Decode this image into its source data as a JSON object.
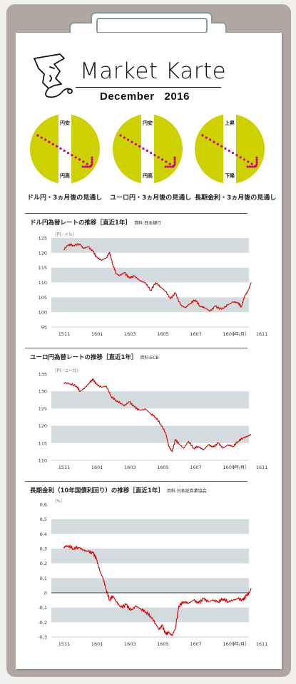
{
  "header": {
    "title": "Market Karte",
    "subtitle": "December   2016",
    "logo_icon": "face-profile-icon"
  },
  "colors": {
    "board": "#b0a6a2",
    "paper": "#ffffff",
    "forecast_circle": "#cdd100",
    "forecast_arrow": "#c8007a",
    "band": "#d4dbde",
    "line": "#d40000"
  },
  "forecasts": [
    {
      "top_label": "円安",
      "bottom_label": "円高",
      "caption": "ドル円・3ヵ月後の見通し",
      "direction": "down"
    },
    {
      "top_label": "円安",
      "bottom_label": "円高",
      "caption": "ユーロ円・3ヵ月後の見通し",
      "direction": "down"
    },
    {
      "top_label": "上昇",
      "bottom_label": "下降",
      "caption": "長期金利・3ヵ月後の見通し",
      "direction": "down"
    }
  ],
  "charts": [
    {
      "title": "ドル円為替レートの推移［直近1年］",
      "source": "資料:日本銀行"
    },
    {
      "title": "ユーロ円為替レートの推移［直近1年］",
      "source": "資料:ECB"
    },
    {
      "title": "長期金利（10年国債利回り）の推移［直近1年］",
      "source": "資料:日本証券業協会"
    }
  ],
  "chart_data": [
    {
      "type": "line",
      "unit": "［円／ドル］",
      "x_unit": "［年/月］",
      "x_ticks": [
        "1511",
        "1601",
        "1603",
        "1605",
        "1607",
        "1609",
        "1611"
      ],
      "ylim": [
        95,
        125
      ],
      "y_ticks": [
        "95",
        "100",
        "105",
        "110",
        "115",
        "120",
        "125"
      ],
      "y_tick_values": [
        95,
        100,
        105,
        110,
        115,
        120,
        125
      ],
      "series": [
        {
          "values": [
            [
              0,
              121.0
            ],
            [
              0.3,
              122.8
            ],
            [
              0.6,
              122.5
            ],
            [
              1.0,
              123.0
            ],
            [
              1.2,
              121.5
            ],
            [
              1.5,
              122.0
            ],
            [
              1.8,
              120.5
            ],
            [
              2.0,
              118.5
            ],
            [
              2.3,
              117.5
            ],
            [
              2.6,
              118.3
            ],
            [
              2.8,
              120.2
            ],
            [
              3.0,
              116.0
            ],
            [
              3.2,
              113.0
            ],
            [
              3.4,
              112.3
            ],
            [
              3.7,
              113.3
            ],
            [
              4.0,
              111.5
            ],
            [
              4.3,
              112.2
            ],
            [
              4.6,
              110.8
            ],
            [
              5.0,
              109.8
            ],
            [
              5.3,
              107.3
            ],
            [
              5.6,
              110.0
            ],
            [
              5.9,
              108.5
            ],
            [
              6.2,
              107.0
            ],
            [
              6.5,
              104.5
            ],
            [
              6.8,
              106.5
            ],
            [
              7.1,
              102.5
            ],
            [
              7.4,
              101.5
            ],
            [
              7.7,
              103.0
            ],
            [
              8.0,
              104.2
            ],
            [
              8.3,
              102.0
            ],
            [
              8.6,
              101.5
            ],
            [
              8.9,
              100.3
            ],
            [
              9.2,
              102.0
            ],
            [
              9.6,
              101.0
            ],
            [
              10.0,
              102.5
            ],
            [
              10.3,
              103.5
            ],
            [
              10.6,
              103.2
            ],
            [
              10.8,
              101.8
            ],
            [
              11.0,
              105.5
            ],
            [
              11.2,
              107.0
            ],
            [
              11.4,
              110.0
            ]
          ]
        }
      ]
    },
    {
      "type": "line",
      "unit": "［円／ユーロ］",
      "x_unit": "［年/月］",
      "x_ticks": [
        "1511",
        "1601",
        "1603",
        "1605",
        "1607",
        "1609",
        "1611"
      ],
      "ylim": [
        110,
        135
      ],
      "y_ticks": [
        "110",
        "115",
        "120",
        "125",
        "130",
        "135"
      ],
      "y_tick_values": [
        110,
        115,
        120,
        125,
        130,
        135
      ],
      "series": [
        {
          "values": [
            [
              0,
              132.5
            ],
            [
              0.4,
              132.2
            ],
            [
              0.8,
              131.5
            ],
            [
              1.0,
              130.0
            ],
            [
              1.3,
              131.0
            ],
            [
              1.6,
              132.6
            ],
            [
              1.8,
              133.5
            ],
            [
              2.0,
              132.0
            ],
            [
              2.3,
              131.2
            ],
            [
              2.6,
              131.5
            ],
            [
              2.9,
              128.5
            ],
            [
              3.2,
              127.3
            ],
            [
              3.5,
              126.5
            ],
            [
              3.7,
              125.8
            ],
            [
              4.0,
              127.0
            ],
            [
              4.3,
              125.5
            ],
            [
              4.6,
              124.5
            ],
            [
              5.0,
              124.8
            ],
            [
              5.3,
              123.5
            ],
            [
              5.6,
              122.5
            ],
            [
              5.9,
              120.5
            ],
            [
              6.2,
              118.0
            ],
            [
              6.4,
              114.0
            ],
            [
              6.6,
              112.5
            ],
            [
              6.8,
              116.0
            ],
            [
              7.0,
              114.8
            ],
            [
              7.3,
              113.5
            ],
            [
              7.6,
              115.5
            ],
            [
              7.9,
              113.5
            ],
            [
              8.2,
              114.0
            ],
            [
              8.5,
              113.0
            ],
            [
              8.8,
              114.5
            ],
            [
              9.1,
              113.8
            ],
            [
              9.4,
              115.0
            ],
            [
              9.7,
              113.5
            ],
            [
              10.0,
              114.5
            ],
            [
              10.3,
              114.0
            ],
            [
              10.6,
              115.5
            ],
            [
              10.9,
              116.5
            ],
            [
              11.2,
              117.0
            ],
            [
              11.4,
              117.5
            ]
          ]
        }
      ]
    },
    {
      "type": "line",
      "unit": "［%］",
      "x_unit": "［年/月］",
      "x_ticks": [
        "1511",
        "1601",
        "1603",
        "1605",
        "1607",
        "1609",
        "1611"
      ],
      "ylim": [
        -0.3,
        0.6
      ],
      "y_ticks": [
        "-0,3",
        "-0,2",
        "-0,1",
        "0",
        "0,1",
        "0,2",
        "0,3",
        "0,4",
        "0,5",
        "0,6"
      ],
      "y_tick_values": [
        -0.3,
        -0.2,
        -0.1,
        0,
        0.1,
        0.2,
        0.3,
        0.4,
        0.5,
        0.6
      ],
      "series": [
        {
          "values": [
            [
              0,
              0.31
            ],
            [
              0.3,
              0.32
            ],
            [
              0.6,
              0.3
            ],
            [
              0.9,
              0.31
            ],
            [
              1.2,
              0.29
            ],
            [
              1.5,
              0.28
            ],
            [
              1.8,
              0.27
            ],
            [
              2.0,
              0.23
            ],
            [
              2.2,
              0.15
            ],
            [
              2.4,
              0.1
            ],
            [
              2.6,
              0.02
            ],
            [
              2.8,
              -0.05
            ],
            [
              3.0,
              -0.02
            ],
            [
              3.2,
              -0.06
            ],
            [
              3.5,
              -0.1
            ],
            [
              3.8,
              -0.08
            ],
            [
              4.1,
              -0.12
            ],
            [
              4.4,
              -0.09
            ],
            [
              4.7,
              -0.11
            ],
            [
              5.0,
              -0.13
            ],
            [
              5.3,
              -0.16
            ],
            [
              5.6,
              -0.21
            ],
            [
              5.8,
              -0.25
            ],
            [
              6.0,
              -0.22
            ],
            [
              6.2,
              -0.28
            ],
            [
              6.4,
              -0.27
            ],
            [
              6.6,
              -0.29
            ],
            [
              6.8,
              -0.24
            ],
            [
              7.0,
              -0.09
            ],
            [
              7.3,
              -0.06
            ],
            [
              7.6,
              -0.07
            ],
            [
              7.9,
              -0.05
            ],
            [
              8.2,
              -0.07
            ],
            [
              8.5,
              -0.04
            ],
            [
              8.8,
              -0.06
            ],
            [
              9.1,
              -0.05
            ],
            [
              9.4,
              -0.06
            ],
            [
              9.7,
              -0.04
            ],
            [
              10.0,
              -0.06
            ],
            [
              10.3,
              -0.05
            ],
            [
              10.6,
              -0.04
            ],
            [
              10.9,
              -0.05
            ],
            [
              11.1,
              -0.02
            ],
            [
              11.3,
              0.0
            ],
            [
              11.4,
              0.03
            ]
          ]
        }
      ]
    }
  ]
}
